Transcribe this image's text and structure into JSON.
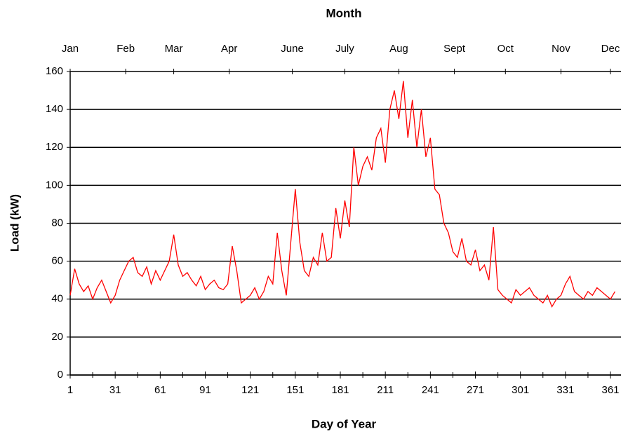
{
  "chart_data": {
    "type": "line",
    "x_label": "Day of Year",
    "y_label": "Load (kW)",
    "top_axis_label": "Month",
    "x": [
      1,
      4,
      7,
      10,
      13,
      16,
      19,
      22,
      25,
      28,
      31,
      34,
      37,
      40,
      43,
      46,
      49,
      52,
      55,
      58,
      61,
      64,
      67,
      70,
      73,
      76,
      79,
      82,
      85,
      88,
      91,
      94,
      97,
      100,
      103,
      106,
      109,
      112,
      115,
      118,
      121,
      124,
      127,
      130,
      133,
      136,
      139,
      142,
      145,
      148,
      151,
      154,
      157,
      160,
      163,
      166,
      169,
      172,
      175,
      178,
      181,
      184,
      187,
      190,
      193,
      196,
      199,
      202,
      205,
      208,
      211,
      214,
      217,
      220,
      223,
      226,
      229,
      232,
      235,
      238,
      241,
      244,
      247,
      250,
      253,
      256,
      259,
      262,
      265,
      268,
      271,
      274,
      277,
      280,
      283,
      286,
      289,
      292,
      295,
      298,
      301,
      304,
      307,
      310,
      313,
      316,
      319,
      322,
      325,
      328,
      331,
      334,
      337,
      340,
      343,
      346,
      349,
      352,
      355,
      358,
      361,
      364
    ],
    "series": [
      {
        "name": "Load",
        "color": "#ff0000",
        "values": [
          42,
          56,
          48,
          44,
          47,
          40,
          46,
          50,
          44,
          38,
          42,
          50,
          55,
          60,
          62,
          54,
          52,
          57,
          48,
          55,
          50,
          55,
          60,
          74,
          58,
          52,
          54,
          50,
          47,
          52,
          45,
          48,
          50,
          46,
          45,
          48,
          68,
          55,
          38,
          40,
          42,
          46,
          40,
          44,
          52,
          48,
          75,
          55,
          42,
          70,
          98,
          70,
          55,
          52,
          62,
          58,
          75,
          60,
          62,
          88,
          72,
          92,
          78,
          120,
          100,
          110,
          115,
          108,
          125,
          130,
          112,
          140,
          150,
          135,
          155,
          125,
          145,
          120,
          140,
          115,
          125,
          98,
          95,
          80,
          75,
          65,
          62,
          72,
          60,
          58,
          66,
          55,
          58,
          50,
          78,
          45,
          42,
          40,
          38,
          45,
          42,
          44,
          46,
          42,
          40,
          38,
          42,
          36,
          40,
          42,
          48,
          52,
          44,
          42,
          40,
          44,
          42,
          46,
          44,
          42,
          40,
          44
        ]
      }
    ],
    "xlim": [
      1,
      368
    ],
    "xticks": [
      1,
      31,
      61,
      91,
      121,
      151,
      181,
      211,
      241,
      271,
      301,
      331,
      361
    ],
    "xminorticks": [
      16,
      46,
      76,
      106,
      136,
      166,
      196,
      226,
      256,
      286,
      316,
      346
    ],
    "ylim": [
      0,
      160
    ],
    "yticks": [
      0,
      20,
      40,
      60,
      80,
      100,
      120,
      140,
      160
    ],
    "grid": true,
    "top_ticks": [
      {
        "value": 1,
        "label": "Jan"
      },
      {
        "value": 38,
        "label": "Feb"
      },
      {
        "value": 70,
        "label": "Mar"
      },
      {
        "value": 107,
        "label": "Apr"
      },
      {
        "value": 149,
        "label": "June"
      },
      {
        "value": 184,
        "label": "July"
      },
      {
        "value": 220,
        "label": "Aug"
      },
      {
        "value": 257,
        "label": "Sept"
      },
      {
        "value": 291,
        "label": "Oct"
      },
      {
        "value": 328,
        "label": "Nov"
      },
      {
        "value": 361,
        "label": "Dec"
      }
    ]
  }
}
